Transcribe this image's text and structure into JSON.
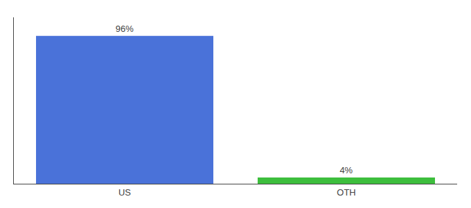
{
  "chart_data": {
    "type": "bar",
    "categories": [
      "US",
      "OTH"
    ],
    "values": [
      96,
      4
    ],
    "value_labels": [
      "96%",
      "4%"
    ],
    "colors": [
      "#4a72d9",
      "#3dbe3d"
    ],
    "ylim": [
      0,
      108
    ],
    "data_labels": true,
    "tick_labels": "x",
    "grid": false
  }
}
